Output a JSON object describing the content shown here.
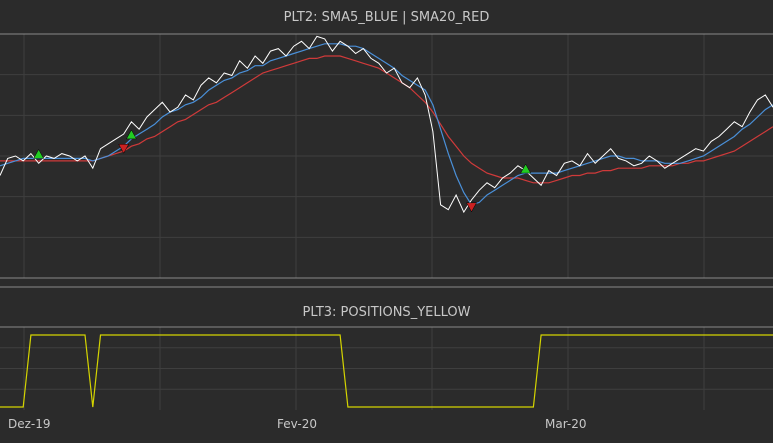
{
  "panels": {
    "price_title": "PLT2: SMA5_BLUE | SMA20_RED",
    "positions_title": "PLT3: POSITIONS_YELLOW"
  },
  "colors": {
    "background": "#2b2b2b",
    "grid": "#3f3f3f",
    "border": "#8a8a8a",
    "price": "#ffffff",
    "sma5": "#4a90d9",
    "sma20": "#d03a3a",
    "positions": "#d4d400",
    "buy_marker": "#22cc22",
    "sell_marker": "#cc2222"
  },
  "x_axis": {
    "ticks": [
      "Dez-19",
      "Fev-20",
      "Mar-20"
    ]
  },
  "chart_data": [
    {
      "type": "line",
      "title": "PLT2: SMA5_BLUE | SMA20_RED",
      "x": [
        0,
        1,
        2,
        3,
        4,
        5,
        6,
        7,
        8,
        9,
        10,
        11,
        12,
        13,
        14,
        15,
        16,
        17,
        18,
        19,
        20,
        21,
        22,
        23,
        24,
        25,
        26,
        27,
        28,
        29,
        30,
        31,
        32,
        33,
        34,
        35,
        36,
        37,
        38,
        39,
        40,
        41,
        42,
        43,
        44,
        45,
        46,
        47,
        48,
        49,
        50,
        51,
        52,
        53,
        54,
        55,
        56,
        57,
        58,
        59,
        60,
        61,
        62,
        63,
        64,
        65,
        66,
        67,
        68,
        69,
        70,
        71,
        72,
        73,
        74,
        75,
        76,
        77,
        78,
        79,
        80,
        81,
        82,
        83,
        84,
        85,
        86,
        87,
        88,
        89,
        90,
        91,
        92,
        93,
        94,
        95,
        96,
        97,
        98,
        99,
        100
      ],
      "ylim": [
        0,
        100
      ],
      "series": [
        {
          "key": "price",
          "values": [
            42,
            49,
            50,
            48,
            51,
            47,
            50,
            49,
            51,
            50,
            48,
            50,
            45,
            53,
            55,
            57,
            59,
            64,
            61,
            66,
            69,
            72,
            68,
            70,
            75,
            73,
            79,
            82,
            80,
            84,
            83,
            89,
            86,
            91,
            88,
            93,
            94,
            91,
            95,
            97,
            94,
            99,
            98,
            93,
            97,
            95,
            92,
            94,
            90,
            88,
            84,
            86,
            80,
            78,
            82,
            75,
            60,
            30,
            28,
            34,
            27,
            32,
            36,
            39,
            37,
            41,
            43,
            46,
            44,
            41,
            38,
            44,
            42,
            47,
            48,
            46,
            51,
            47,
            50,
            53,
            49,
            48,
            46,
            47,
            50,
            48,
            45,
            47,
            49,
            51,
            53,
            52,
            56,
            58,
            61,
            64,
            62,
            68,
            73,
            75,
            70
          ]
        },
        {
          "key": "sma5",
          "values": [
            46,
            47,
            48,
            49,
            49,
            49,
            49,
            49,
            49,
            49,
            49,
            49,
            48,
            49,
            50,
            52,
            54,
            57,
            59,
            61,
            63,
            66,
            68,
            69,
            71,
            72,
            74,
            77,
            79,
            81,
            82,
            84,
            85,
            87,
            87,
            89,
            90,
            91,
            92,
            93,
            94,
            95,
            96,
            96,
            96,
            95,
            95,
            94,
            92,
            90,
            88,
            86,
            83,
            81,
            79,
            77,
            71,
            61,
            51,
            42,
            35,
            30,
            31,
            34,
            36,
            38,
            40,
            42,
            43,
            43,
            43,
            43,
            43,
            44,
            45,
            46,
            47,
            48,
            49,
            50,
            50,
            49,
            49,
            48,
            48,
            48,
            47,
            47,
            47,
            48,
            49,
            50,
            52,
            54,
            56,
            58,
            61,
            63,
            66,
            69,
            71
          ]
        },
        {
          "key": "sma20",
          "values": [
            48,
            48,
            48,
            48,
            48,
            48,
            48,
            48,
            48,
            48,
            48,
            48,
            48,
            49,
            50,
            51,
            52,
            54,
            55,
            57,
            58,
            60,
            62,
            64,
            65,
            67,
            69,
            71,
            72,
            74,
            76,
            78,
            80,
            82,
            84,
            85,
            86,
            87,
            88,
            89,
            90,
            90,
            91,
            91,
            91,
            90,
            89,
            88,
            87,
            86,
            84,
            82,
            80,
            78,
            75,
            72,
            68,
            63,
            58,
            54,
            50,
            47,
            45,
            43,
            42,
            41,
            41,
            41,
            40,
            39,
            39,
            39,
            40,
            41,
            42,
            42,
            43,
            43,
            44,
            44,
            45,
            45,
            45,
            45,
            46,
            46,
            46,
            46,
            47,
            47,
            48,
            48,
            49,
            50,
            51,
            52,
            54,
            56,
            58,
            60,
            62
          ]
        }
      ],
      "markers": [
        {
          "type": "buy",
          "index": 5
        },
        {
          "type": "sell",
          "index": 16
        },
        {
          "type": "buy",
          "index": 17
        },
        {
          "type": "sell",
          "index": 61
        },
        {
          "type": "buy",
          "index": 68
        }
      ]
    },
    {
      "type": "line",
      "title": "PLT3: POSITIONS_YELLOW",
      "ylim": [
        0,
        1
      ],
      "series": [
        {
          "key": "positions",
          "points": [
            [
              0,
              0
            ],
            [
              3,
              0
            ],
            [
              4,
              1
            ],
            [
              11,
              1
            ],
            [
              12,
              0
            ],
            [
              13,
              1
            ],
            [
              44,
              1
            ],
            [
              45,
              0
            ],
            [
              69,
              0
            ],
            [
              70,
              1
            ],
            [
              100,
              1
            ]
          ]
        }
      ]
    }
  ]
}
